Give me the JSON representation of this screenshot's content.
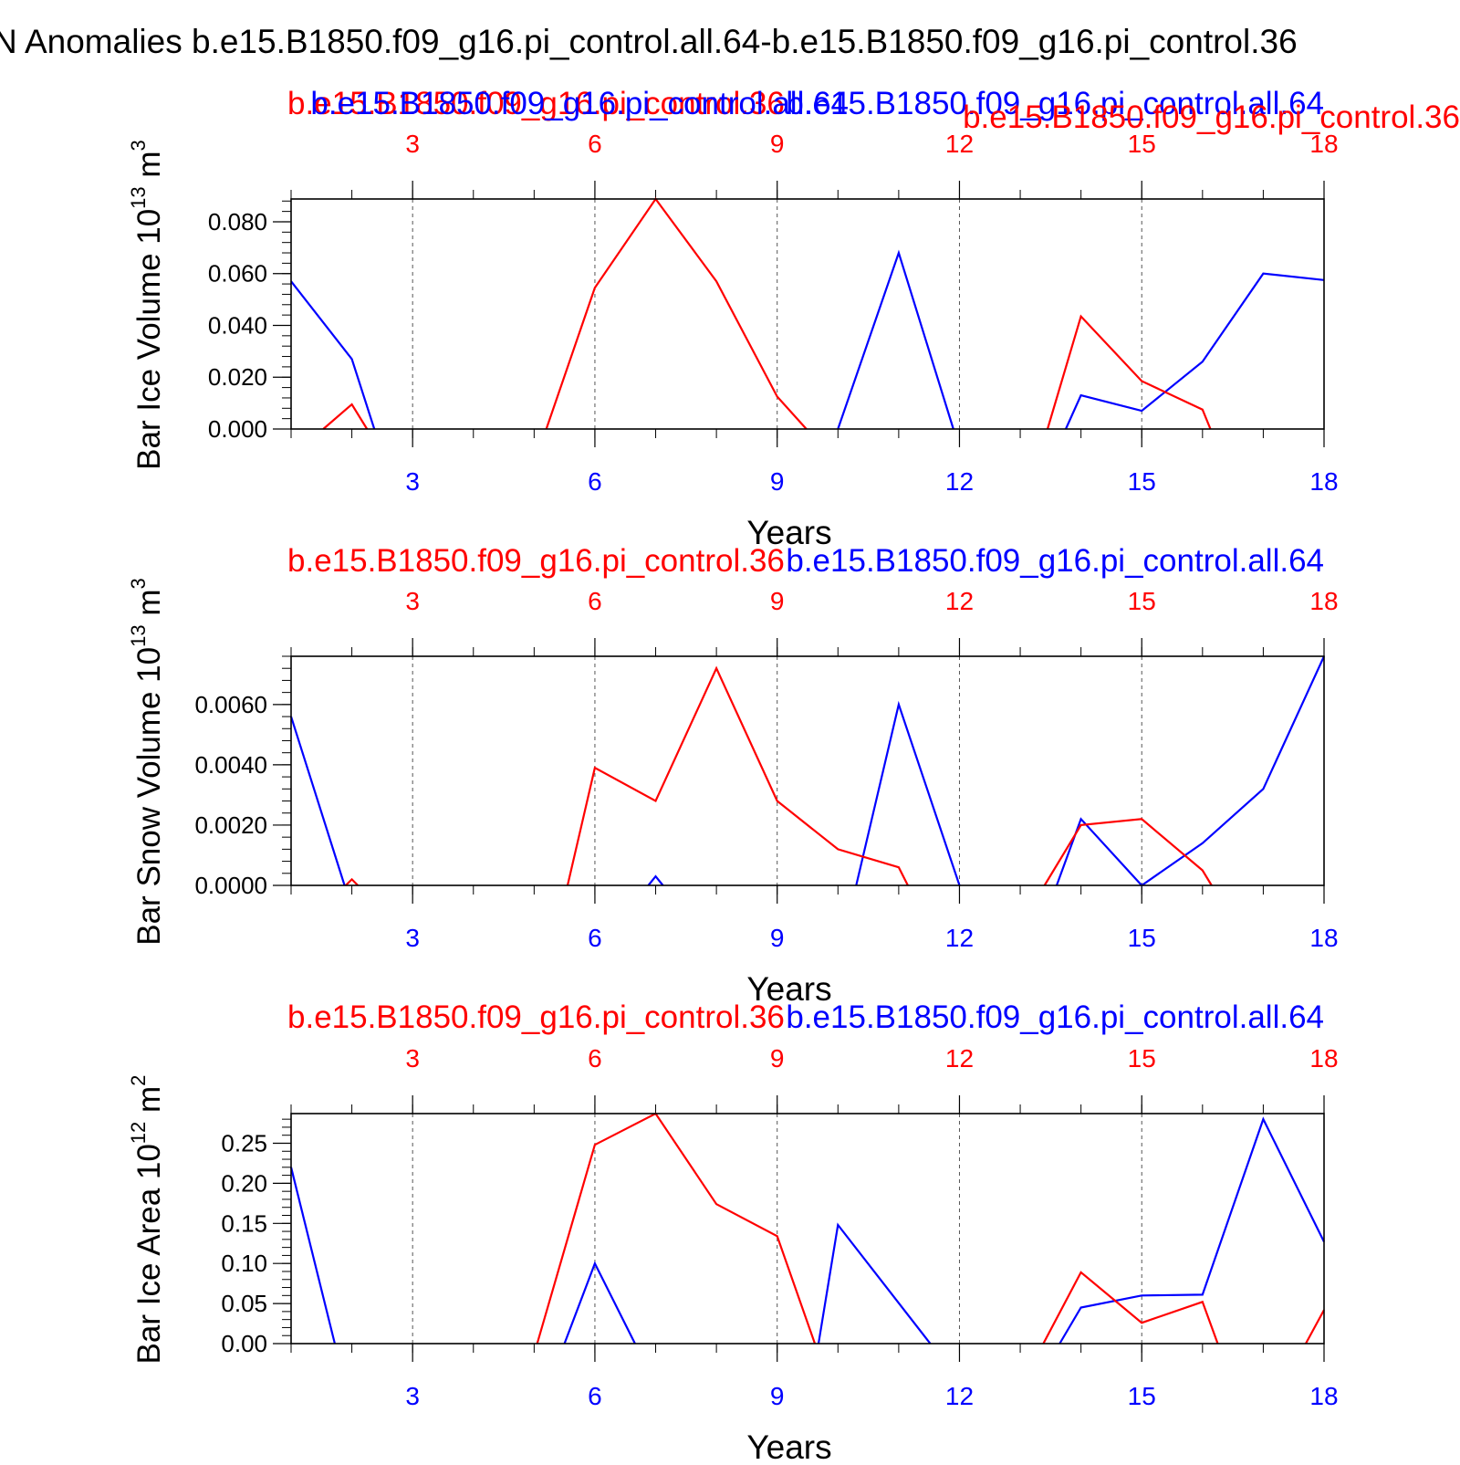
{
  "main_title": "N Anomalies b.e15.B1850.f09_g16.pi_control.all.64-b.e15.B1850.f09_g16.pi_control.36",
  "colors": {
    "run_a": "#0000ff",
    "run_b": "#ff0000",
    "axis": "#000000",
    "grid": "#555555"
  },
  "chart_data": [
    {
      "type": "line",
      "panel": "ice-volume",
      "ylabel": "Bar Ice Volume 10",
      "ylabel_exp": "13",
      "ylabel_unit": "m",
      "ylabel_unit_exp": "3",
      "xlabel": "Years",
      "top_labels": [
        {
          "text": "b.e15.B1850.f09_g16.pi_control.36",
          "color": "#ff0000"
        },
        {
          "text": "b.e15.B1850.f09_g16.pi_control.all.64",
          "color": "#0000ff"
        },
        {
          "text": "b.e15.B1850.f09_g16.pi_control.all.64",
          "color": "#0000ff"
        },
        {
          "text": "b.e15.B1850.f09_g16.pi_control.36",
          "color": "#ff0000"
        }
      ],
      "xlim": [
        1,
        18
      ],
      "ylim": [
        0,
        0.0888
      ],
      "y_ticks": [
        0.0,
        0.02,
        0.04,
        0.06,
        0.08
      ],
      "y_tick_labels": [
        "0.000",
        "0.020",
        "0.040",
        "0.060",
        "0.080"
      ],
      "y_minor_step": 0.004,
      "x_ticks": [
        3,
        6,
        9,
        12,
        15,
        18
      ],
      "x_tick_labels": [
        "3",
        "6",
        "9",
        "12",
        "15",
        "18"
      ],
      "grid": "vertical-dashed-at-major-ticks",
      "series": [
        {
          "color": "#0000ff",
          "x": [
            1,
            2,
            2.37,
            10.0,
            11,
            11.9,
            13.75,
            14,
            15,
            16,
            17,
            18
          ],
          "y": [
            0.057,
            0.027,
            0.0,
            0.0,
            0.068,
            0.0,
            0.0,
            0.013,
            0.007,
            0.026,
            0.06,
            0.0575
          ],
          "segments": [
            [
              0,
              2
            ],
            [
              3,
              5
            ],
            [
              6,
              11
            ]
          ]
        },
        {
          "color": "#ff0000",
          "x": [
            1.53,
            2,
            2.25,
            5.2,
            6,
            7,
            8,
            9,
            9.48,
            13.45,
            14,
            15,
            16,
            16.13
          ],
          "y": [
            0.0,
            0.0095,
            0.0,
            0.0,
            0.0545,
            0.0888,
            0.057,
            0.0125,
            0.0,
            0.0,
            0.0435,
            0.0185,
            0.0075,
            0.0
          ],
          "segments": [
            [
              0,
              2
            ],
            [
              3,
              8
            ],
            [
              9,
              13
            ]
          ]
        }
      ]
    },
    {
      "type": "line",
      "panel": "snow-volume",
      "ylabel": "Bar Snow Volume 10",
      "ylabel_exp": "13",
      "ylabel_unit": "m",
      "ylabel_unit_exp": "3",
      "xlabel": "Years",
      "top_labels": [
        {
          "text": "b.e15.B1850.f09_g16.pi_control.36",
          "color": "#ff0000"
        },
        {
          "text": "b.e15.B1850.f09_g16.pi_control.all.64",
          "color": "#0000ff"
        }
      ],
      "xlim": [
        1,
        18
      ],
      "ylim": [
        0,
        0.0076
      ],
      "y_ticks": [
        0.0,
        0.002,
        0.004,
        0.006
      ],
      "y_tick_labels": [
        "0.0000",
        "0.0020",
        "0.0040",
        "0.0060"
      ],
      "y_minor_step": 0.0004,
      "x_ticks": [
        3,
        6,
        9,
        12,
        15,
        18
      ],
      "x_tick_labels": [
        "3",
        "6",
        "9",
        "12",
        "15",
        "18"
      ],
      "grid": "vertical-dashed-at-major-ticks",
      "series": [
        {
          "color": "#0000ff",
          "x": [
            1,
            1.88,
            6.88,
            7,
            7.12,
            10.3,
            11,
            12,
            13.6,
            14,
            15,
            16,
            17,
            18
          ],
          "y": [
            0.0056,
            0.0,
            0.0,
            0.0003,
            0.0,
            0.0,
            0.006,
            0.0,
            0.0,
            0.0022,
            0.0,
            0.0014,
            0.0032,
            0.0076
          ],
          "segments": [
            [
              0,
              1
            ],
            [
              2,
              4
            ],
            [
              5,
              7
            ],
            [
              8,
              13
            ]
          ]
        },
        {
          "color": "#ff0000",
          "x": [
            1.9,
            2,
            2.1,
            5.55,
            6,
            7,
            8,
            9,
            10,
            11,
            11.15,
            13.4,
            14,
            15,
            16,
            16.15
          ],
          "y": [
            0.0,
            0.0002,
            0.0,
            0.0,
            0.0039,
            0.0028,
            0.0072,
            0.0028,
            0.0012,
            0.0006,
            0.0,
            0.0,
            0.002,
            0.0022,
            0.0005,
            0.0
          ],
          "segments": [
            [
              0,
              2
            ],
            [
              3,
              10
            ],
            [
              11,
              15
            ]
          ]
        }
      ]
    },
    {
      "type": "line",
      "panel": "ice-area",
      "ylabel": "Bar Ice Area 10",
      "ylabel_exp": "12",
      "ylabel_unit": "m",
      "ylabel_unit_exp": "2",
      "xlabel": "Years",
      "top_labels": [
        {
          "text": "b.e15.B1850.f09_g16.pi_control.36",
          "color": "#ff0000"
        },
        {
          "text": "b.e15.B1850.f09_g16.pi_control.all.64",
          "color": "#0000ff"
        }
      ],
      "xlim": [
        1,
        18
      ],
      "ylim": [
        0,
        0.287
      ],
      "y_ticks": [
        0.0,
        0.05,
        0.1,
        0.15,
        0.2,
        0.25
      ],
      "y_tick_labels": [
        "0.00",
        "0.05",
        "0.10",
        "0.15",
        "0.20",
        "0.25"
      ],
      "y_minor_step": 0.01,
      "x_ticks": [
        3,
        6,
        9,
        12,
        15,
        18
      ],
      "x_tick_labels": [
        "3",
        "6",
        "9",
        "12",
        "15",
        "18"
      ],
      "grid": "vertical-dashed-at-major-ticks",
      "series": [
        {
          "color": "#0000ff",
          "x": [
            1,
            1.72,
            5.5,
            6,
            6.66,
            9.68,
            10,
            11.52,
            13.65,
            14,
            15,
            16,
            17,
            18
          ],
          "y": [
            0.22,
            0.0,
            0.0,
            0.1,
            0.0,
            0.0,
            0.148,
            0.0,
            0.0,
            0.045,
            0.06,
            0.061,
            0.28,
            0.127
          ],
          "segments": [
            [
              0,
              1
            ],
            [
              2,
              4
            ],
            [
              5,
              7
            ],
            [
              8,
              13
            ]
          ]
        },
        {
          "color": "#ff0000",
          "x": [
            5.05,
            6,
            7,
            8,
            9,
            9.62,
            13.38,
            14,
            15,
            16,
            16.25,
            17.7,
            18
          ],
          "y": [
            0.0,
            0.248,
            0.287,
            0.174,
            0.134,
            0.0,
            0.0,
            0.089,
            0.026,
            0.052,
            0.0,
            0.0,
            0.042
          ],
          "segments": [
            [
              0,
              5
            ],
            [
              6,
              10
            ],
            [
              11,
              12
            ]
          ]
        }
      ]
    }
  ]
}
